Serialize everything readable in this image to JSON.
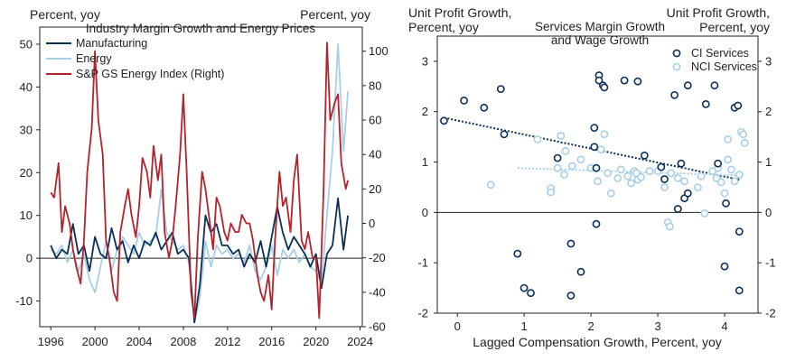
{
  "colors": {
    "navy": "#0b2f57",
    "light_blue": "#a8cfe8",
    "red": "#b5222b",
    "axis": "#222222"
  },
  "chart_data": [
    {
      "type": "line",
      "title": "Industry Margin Growth and Energy Prices",
      "ylabel_left": "Percent, yoy",
      "ylabel_right": "Percent, yoy",
      "xlim": [
        1995,
        2024.2
      ],
      "xticks": [
        1996,
        2000,
        2004,
        2008,
        2012,
        2016,
        2020,
        2024
      ],
      "ylim_left": [
        -16,
        54
      ],
      "yticks_left": [
        -10,
        0,
        10,
        20,
        30,
        40,
        50
      ],
      "ylim_right": [
        -60,
        114
      ],
      "yticks_right": [
        -60,
        -40,
        -20,
        0,
        20,
        40,
        60,
        80,
        100
      ],
      "legend": [
        "Manufacturing",
        "Energy",
        "S&P GS Energy Index (Right)"
      ],
      "series": [
        {
          "name": "Manufacturing",
          "axis": "left",
          "color": "#0b2f57",
          "x": [
            1996.0,
            1996.5,
            1997.0,
            1997.5,
            1998.0,
            1998.5,
            1999.0,
            1999.5,
            2000.0,
            2000.5,
            2001.0,
            2001.5,
            2002.0,
            2002.5,
            2003.0,
            2003.5,
            2004.0,
            2004.5,
            2005.0,
            2005.5,
            2006.0,
            2006.5,
            2007.0,
            2007.5,
            2008.0,
            2008.5,
            2009.0,
            2009.5,
            2010.0,
            2010.5,
            2011.0,
            2011.5,
            2012.0,
            2012.5,
            2013.0,
            2013.5,
            2014.0,
            2014.5,
            2015.0,
            2015.5,
            2016.0,
            2016.5,
            2017.0,
            2017.5,
            2018.0,
            2018.5,
            2019.0,
            2019.5,
            2020.0,
            2020.5,
            2021.0,
            2021.5,
            2022.0,
            2022.5,
            2022.9
          ],
          "y": [
            3,
            0,
            2,
            1,
            8,
            1,
            3,
            -3,
            5,
            1,
            0,
            7,
            2,
            4,
            -1,
            3,
            0,
            4,
            3,
            6,
            2,
            4,
            6,
            1,
            2,
            0,
            -15,
            -6,
            10,
            6,
            8,
            3,
            3,
            1,
            2,
            -2,
            1,
            -1,
            4,
            -2,
            5,
            12,
            6,
            2,
            5,
            3,
            1,
            -2,
            1,
            -7,
            1,
            3,
            14,
            2,
            10
          ]
        },
        {
          "name": "Energy",
          "axis": "left",
          "color": "#a8cfe8",
          "x": [
            1996.0,
            1996.5,
            1997.0,
            1997.5,
            1998.0,
            1998.5,
            1999.0,
            1999.5,
            2000.0,
            2000.5,
            2001.0,
            2001.5,
            2002.0,
            2002.5,
            2003.0,
            2003.5,
            2004.0,
            2004.5,
            2005.0,
            2005.5,
            2006.0,
            2006.5,
            2007.0,
            2007.5,
            2008.0,
            2008.5,
            2009.0,
            2009.5,
            2010.0,
            2010.5,
            2011.0,
            2011.5,
            2012.0,
            2012.5,
            2013.0,
            2013.5,
            2014.0,
            2014.5,
            2015.0,
            2015.5,
            2016.0,
            2016.5,
            2017.0,
            2017.5,
            2018.0,
            2018.5,
            2019.0,
            2019.5,
            2020.0,
            2020.5,
            2021.0,
            2021.5,
            2022.0,
            2022.5,
            2022.9
          ],
          "y": [
            2,
            1,
            3,
            -1,
            2,
            -3,
            1,
            -5,
            -8,
            -2,
            4,
            -3,
            2,
            5,
            3,
            1,
            6,
            3,
            4,
            5,
            16,
            6,
            4,
            2,
            3,
            -1,
            -15,
            -9,
            4,
            -2,
            3,
            1,
            2,
            0,
            1,
            -1,
            3,
            -3,
            -5,
            -2,
            3,
            -4,
            2,
            0,
            2,
            -1,
            1,
            -2,
            -3,
            -6,
            10,
            25,
            50,
            25,
            39
          ]
        },
        {
          "name": "S&P GS Energy Index (Right)",
          "axis": "right",
          "color": "#b5222b",
          "x": [
            1996.0,
            1996.3,
            1996.7,
            1997.0,
            1997.3,
            1997.7,
            1998.0,
            1998.3,
            1998.7,
            1999.0,
            1999.3,
            1999.7,
            2000.0,
            2000.3,
            2000.7,
            2001.0,
            2001.3,
            2001.7,
            2002.0,
            2002.3,
            2002.7,
            2003.0,
            2003.3,
            2003.7,
            2004.0,
            2004.3,
            2004.7,
            2005.0,
            2005.3,
            2005.7,
            2006.0,
            2006.3,
            2006.7,
            2007.0,
            2007.3,
            2007.7,
            2008.0,
            2008.3,
            2008.7,
            2009.0,
            2009.3,
            2009.7,
            2010.0,
            2010.3,
            2010.7,
            2011.0,
            2011.3,
            2011.7,
            2012.0,
            2012.3,
            2012.7,
            2013.0,
            2013.3,
            2013.7,
            2014.0,
            2014.3,
            2014.7,
            2015.0,
            2015.3,
            2015.7,
            2016.0,
            2016.3,
            2016.7,
            2017.0,
            2017.3,
            2017.7,
            2018.0,
            2018.3,
            2018.7,
            2019.0,
            2019.3,
            2019.7,
            2020.0,
            2020.3,
            2020.7,
            2021.0,
            2021.3,
            2021.7,
            2022.0,
            2022.3,
            2022.7,
            2022.9
          ],
          "y": [
            18,
            15,
            35,
            -5,
            10,
            0,
            -15,
            -25,
            -35,
            -10,
            30,
            55,
            100,
            60,
            40,
            -10,
            -20,
            -40,
            -45,
            -5,
            10,
            20,
            5,
            -8,
            10,
            38,
            30,
            15,
            45,
            25,
            40,
            -5,
            -20,
            -10,
            10,
            40,
            75,
            30,
            -40,
            -55,
            -10,
            30,
            20,
            5,
            -15,
            15,
            10,
            -5,
            -10,
            0,
            -5,
            -5,
            5,
            0,
            0,
            -10,
            -30,
            -40,
            -45,
            -30,
            -50,
            -10,
            30,
            10,
            15,
            -5,
            25,
            40,
            -10,
            -15,
            -5,
            -20,
            -20,
            -55,
            20,
            105,
            60,
            70,
            75,
            35,
            20,
            25
          ]
        }
      ]
    },
    {
      "type": "scatter",
      "title_line1": "Services Margin Growth",
      "title_line2": "and Wage Growth",
      "ylabel_left_line1": "Unit Profit Growth,",
      "ylabel_left_line2": "Percent, yoy",
      "ylabel_right_line1": "Unit Profit Growth,",
      "ylabel_right_line2": "Percent, yoy",
      "xlabel": "Lagged Compensation Growth, Percent, yoy",
      "xlim": [
        -0.3,
        4.5
      ],
      "xticks": [
        0,
        1,
        2,
        3,
        4
      ],
      "ylim": [
        -2,
        3.5
      ],
      "yticks": [
        -2,
        -1,
        0,
        1,
        2,
        3
      ],
      "legend": [
        "CI Services",
        "NCI Services"
      ],
      "series": [
        {
          "name": "CI Services",
          "color": "#0b2f57",
          "points": [
            [
              -0.2,
              1.82
            ],
            [
              0.1,
              2.22
            ],
            [
              0.4,
              2.08
            ],
            [
              0.65,
              2.45
            ],
            [
              0.7,
              1.55
            ],
            [
              0.9,
              -0.82
            ],
            [
              1.0,
              -1.5
            ],
            [
              1.1,
              -1.6
            ],
            [
              1.5,
              1.08
            ],
            [
              1.7,
              -0.62
            ],
            [
              1.7,
              -1.65
            ],
            [
              1.85,
              -1.18
            ],
            [
              2.05,
              1.68
            ],
            [
              2.05,
              1.3
            ],
            [
              2.08,
              0.88
            ],
            [
              2.08,
              -0.23
            ],
            [
              2.12,
              2.72
            ],
            [
              2.12,
              2.62
            ],
            [
              2.18,
              2.52
            ],
            [
              2.2,
              2.48
            ],
            [
              2.5,
              2.62
            ],
            [
              2.7,
              2.6
            ],
            [
              2.8,
              1.13
            ],
            [
              3.05,
              0.9
            ],
            [
              3.1,
              0.66
            ],
            [
              3.25,
              2.33
            ],
            [
              3.3,
              0.07
            ],
            [
              3.35,
              0.97
            ],
            [
              3.4,
              0.28
            ],
            [
              3.45,
              0.38
            ],
            [
              3.45,
              2.52
            ],
            [
              3.72,
              2.15
            ],
            [
              3.85,
              2.52
            ],
            [
              3.9,
              0.97
            ],
            [
              4.0,
              -1.07
            ],
            [
              4.02,
              0.18
            ],
            [
              4.15,
              2.08
            ],
            [
              4.2,
              2.12
            ],
            [
              4.22,
              -0.38
            ],
            [
              4.22,
              -1.55
            ]
          ]
        },
        {
          "name": "NCI Services",
          "color": "#a8cfe8",
          "points": [
            [
              0.5,
              0.55
            ],
            [
              1.2,
              1.45
            ],
            [
              1.4,
              0.48
            ],
            [
              1.4,
              0.4
            ],
            [
              1.5,
              0.88
            ],
            [
              1.55,
              1.52
            ],
            [
              1.6,
              0.75
            ],
            [
              1.62,
              1.22
            ],
            [
              1.72,
              0.92
            ],
            [
              1.85,
              1.05
            ],
            [
              2.0,
              0.88
            ],
            [
              2.1,
              0.62
            ],
            [
              2.15,
              1.25
            ],
            [
              2.2,
              1.55
            ],
            [
              2.25,
              0.78
            ],
            [
              2.3,
              0.38
            ],
            [
              2.4,
              0.68
            ],
            [
              2.45,
              0.85
            ],
            [
              2.55,
              0.72
            ],
            [
              2.6,
              0.58
            ],
            [
              2.65,
              0.82
            ],
            [
              2.68,
              0.78
            ],
            [
              2.7,
              0.65
            ],
            [
              2.75,
              0.7
            ],
            [
              2.88,
              0.82
            ],
            [
              3.0,
              0.82
            ],
            [
              3.1,
              0.5
            ],
            [
              3.15,
              -0.2
            ],
            [
              3.18,
              -0.28
            ],
            [
              3.2,
              0.78
            ],
            [
              3.3,
              0.68
            ],
            [
              3.4,
              0.62
            ],
            [
              3.6,
              0.5
            ],
            [
              3.65,
              0.72
            ],
            [
              3.7,
              -0.02
            ],
            [
              3.82,
              0.82
            ],
            [
              3.88,
              0.68
            ],
            [
              3.9,
              0.88
            ],
            [
              3.95,
              0.6
            ],
            [
              4.0,
              0.38
            ],
            [
              4.05,
              1.05
            ],
            [
              4.05,
              1.45
            ],
            [
              4.1,
              0.85
            ],
            [
              4.15,
              0.62
            ],
            [
              4.22,
              0.75
            ],
            [
              4.25,
              1.6
            ],
            [
              4.28,
              1.55
            ],
            [
              4.3,
              1.38
            ]
          ]
        }
      ],
      "trendlines": [
        {
          "series": "CI Services",
          "x": [
            -0.2,
            4.22
          ],
          "y": [
            1.88,
            0.65
          ]
        },
        {
          "series": "NCI Services",
          "x": [
            0.9,
            4.3
          ],
          "y": [
            0.88,
            0.73
          ]
        }
      ]
    }
  ]
}
